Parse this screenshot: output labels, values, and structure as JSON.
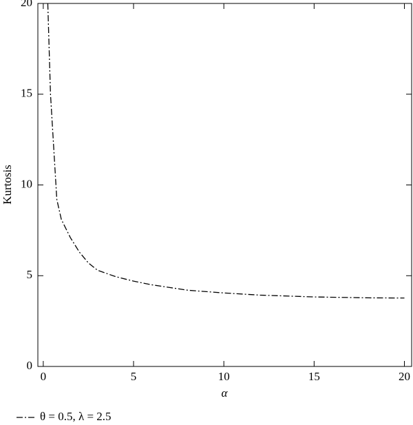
{
  "chart_data": {
    "type": "line",
    "x_label": "α",
    "y_label": "Kurtosis",
    "x": [
      0.25,
      0.4,
      0.75,
      1,
      1.5,
      2,
      2.5,
      3,
      4,
      5,
      6,
      7,
      8,
      10,
      12,
      15,
      18,
      20
    ],
    "series": [
      {
        "name": "θ = 0.5, λ = 2.5",
        "color": "#000000",
        "linestyle": "dashdot",
        "values": [
          20,
          15,
          9.2,
          8.1,
          7.1,
          6.3,
          5.7,
          5.3,
          4.95,
          4.7,
          4.5,
          4.35,
          4.2,
          4.05,
          3.93,
          3.83,
          3.78,
          3.77
        ]
      }
    ],
    "xlim": [
      -0.3,
      20.4
    ],
    "ylim": [
      0,
      20
    ],
    "xticks": [
      0,
      5,
      10,
      15,
      20
    ],
    "yticks": [
      0,
      5,
      10,
      15,
      20
    ],
    "grid": false,
    "legend": "bottom-left"
  }
}
